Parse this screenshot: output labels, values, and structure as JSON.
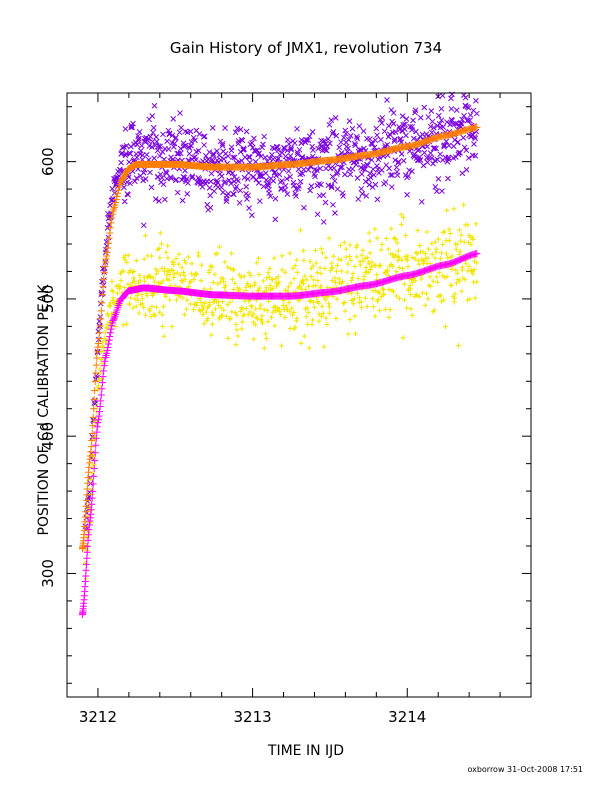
{
  "chart_data": {
    "type": "scatter",
    "title": "Gain History of JMX1, revolution 734",
    "xlabel": "TIME IN IJD",
    "ylabel": "POSITION OF Cd CALIBRATION PEAK",
    "footer": "oxborrow 31-Oct-2008 17:51",
    "xlim": [
      3211.8,
      3214.8
    ],
    "ylim": [
      210,
      650
    ],
    "x_ticks": [
      {
        "value": 3212,
        "label": "3212"
      },
      {
        "value": 3213,
        "label": "3213"
      },
      {
        "value": 3214,
        "label": "3214"
      }
    ],
    "y_ticks": [
      {
        "value": 300,
        "label": "300"
      },
      {
        "value": 400,
        "label": "400"
      },
      {
        "value": 500,
        "label": "500"
      },
      {
        "value": 600,
        "label": "600"
      }
    ],
    "grid": false,
    "legend": "none",
    "series": [
      {
        "marker": "x",
        "color": "#7a00e0",
        "scatter_sd": 14,
        "x_range": [
          3211.92,
          3214.45
        ],
        "points": [
          [
            3211.92,
            330
          ],
          [
            3211.95,
            372
          ],
          [
            3211.98,
            425
          ],
          [
            3212.0,
            468
          ],
          [
            3212.03,
            512
          ],
          [
            3212.06,
            548
          ],
          [
            3212.1,
            578
          ],
          [
            3212.15,
            596
          ],
          [
            3212.25,
            604
          ],
          [
            3212.5,
            602
          ],
          [
            3212.75,
            596
          ],
          [
            3213.0,
            593
          ],
          [
            3213.25,
            596
          ],
          [
            3213.5,
            601
          ],
          [
            3213.75,
            604
          ],
          [
            3214.0,
            610
          ],
          [
            3214.25,
            617
          ],
          [
            3214.45,
            620
          ]
        ]
      },
      {
        "marker": "+",
        "color": "#f2e600",
        "scatter_sd": 16,
        "x_range": [
          3211.92,
          3214.45
        ],
        "points": [
          [
            3211.92,
            305
          ],
          [
            3211.95,
            345
          ],
          [
            3211.98,
            392
          ],
          [
            3212.0,
            430
          ],
          [
            3212.03,
            462
          ],
          [
            3212.06,
            483
          ],
          [
            3212.1,
            498
          ],
          [
            3212.15,
            508
          ],
          [
            3212.25,
            512
          ],
          [
            3212.5,
            508
          ],
          [
            3212.75,
            503
          ],
          [
            3213.0,
            501
          ],
          [
            3213.25,
            503
          ],
          [
            3213.5,
            510
          ],
          [
            3213.75,
            515
          ],
          [
            3214.0,
            520
          ],
          [
            3214.25,
            525
          ],
          [
            3214.45,
            528
          ]
        ]
      },
      {
        "marker": "+",
        "color": "#ff7f00",
        "x_range": [
          3211.9,
          3214.45
        ],
        "points": [
          [
            3211.9,
            318
          ],
          [
            3211.95,
            385
          ],
          [
            3212.0,
            465
          ],
          [
            3212.05,
            528
          ],
          [
            3212.1,
            565
          ],
          [
            3212.15,
            586
          ],
          [
            3212.2,
            595
          ],
          [
            3212.25,
            598
          ],
          [
            3212.35,
            598
          ],
          [
            3212.5,
            598
          ],
          [
            3212.75,
            596
          ],
          [
            3213.0,
            596
          ],
          [
            3213.25,
            598
          ],
          [
            3213.5,
            601
          ],
          [
            3213.75,
            605
          ],
          [
            3214.0,
            611
          ],
          [
            3214.25,
            619
          ],
          [
            3214.45,
            625
          ]
        ]
      },
      {
        "marker": "+",
        "color": "#ff00ff",
        "x_range": [
          3211.9,
          3214.45
        ],
        "points": [
          [
            3211.9,
            270
          ],
          [
            3211.95,
            340
          ],
          [
            3212.0,
            410
          ],
          [
            3212.05,
            458
          ],
          [
            3212.1,
            485
          ],
          [
            3212.15,
            500
          ],
          [
            3212.2,
            506
          ],
          [
            3212.3,
            508
          ],
          [
            3212.5,
            506
          ],
          [
            3212.75,
            503
          ],
          [
            3213.0,
            502
          ],
          [
            3213.25,
            502
          ],
          [
            3213.5,
            505
          ],
          [
            3213.75,
            510
          ],
          [
            3214.0,
            517
          ],
          [
            3214.25,
            525
          ],
          [
            3214.45,
            533
          ]
        ]
      }
    ]
  }
}
